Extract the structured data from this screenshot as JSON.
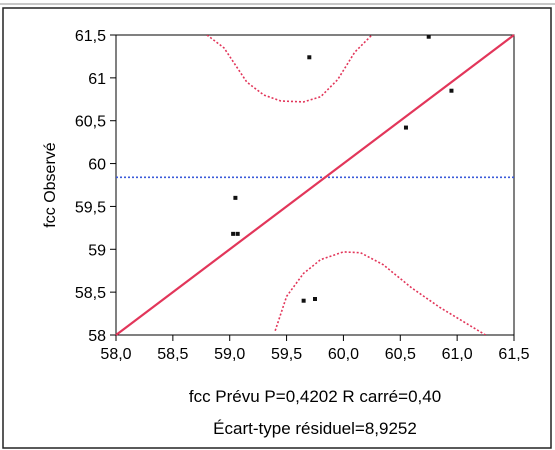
{
  "chart_data": {
    "type": "scatter",
    "title": "",
    "xlabel": "fcc Prévu P=0,4202 R carré=0,40",
    "ylabel": "fcc Observé",
    "subtitle": "Écart-type résiduel=8,9252",
    "xlim": [
      58.0,
      61.5
    ],
    "ylim": [
      58.0,
      61.5
    ],
    "xticks": [
      "58,0",
      "58,5",
      "59,0",
      "59,5",
      "60,0",
      "60,5",
      "61,0",
      "61,5"
    ],
    "yticks": [
      "58",
      "58,5",
      "59",
      "59,5",
      "60",
      "60,5",
      "61",
      "61,5"
    ],
    "grid": false,
    "mean_line": 59.84,
    "points": [
      {
        "x": 59.05,
        "y": 59.6
      },
      {
        "x": 59.03,
        "y": 59.18
      },
      {
        "x": 59.07,
        "y": 59.18
      },
      {
        "x": 59.7,
        "y": 61.24
      },
      {
        "x": 60.55,
        "y": 60.42
      },
      {
        "x": 60.95,
        "y": 60.85
      },
      {
        "x": 60.75,
        "y": 61.48
      },
      {
        "x": 59.65,
        "y": 58.4
      },
      {
        "x": 59.75,
        "y": 58.42
      }
    ],
    "fit_line": [
      [
        58.0,
        58.0
      ],
      [
        61.5,
        61.5
      ]
    ],
    "confidence_upper": [
      [
        59.05,
        61.5
      ],
      [
        59.2,
        61.1
      ],
      [
        59.4,
        60.82
      ],
      [
        59.55,
        60.74
      ],
      [
        59.7,
        60.73
      ],
      [
        59.85,
        60.84
      ],
      [
        60.0,
        61.08
      ],
      [
        60.15,
        61.5
      ]
    ],
    "confidence_upper_left": [
      [
        58.8,
        61.5
      ],
      [
        58.95,
        61.35
      ],
      [
        59.05,
        61.15
      ],
      [
        59.15,
        60.95
      ],
      [
        59.3,
        60.8
      ],
      [
        59.45,
        60.73
      ],
      [
        59.65,
        60.72
      ],
      [
        59.8,
        60.78
      ],
      [
        59.95,
        60.98
      ],
      [
        60.1,
        61.3
      ],
      [
        60.25,
        61.5
      ]
    ],
    "confidence_lower": [
      [
        59.4,
        58.05
      ],
      [
        59.5,
        58.45
      ],
      [
        59.65,
        58.72
      ],
      [
        59.8,
        58.88
      ],
      [
        60.0,
        58.97
      ],
      [
        60.15,
        58.96
      ],
      [
        60.35,
        58.82
      ],
      [
        60.6,
        58.55
      ],
      [
        60.85,
        58.32
      ],
      [
        61.1,
        58.12
      ],
      [
        61.25,
        58.0
      ]
    ],
    "colors": {
      "fit": "#e2365a",
      "confidence": "#e2365a",
      "mean": "#3b5bd9",
      "points": "#111111",
      "frame": "#000000"
    }
  }
}
